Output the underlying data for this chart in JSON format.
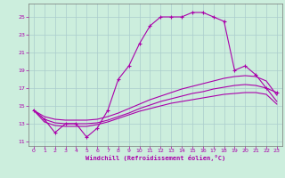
{
  "xlabel": "Windchill (Refroidissement éolien,°C)",
  "bg_color": "#cceedd",
  "line_color": "#aa00aa",
  "grid_color": "#aacccc",
  "ylim": [
    10.5,
    26.5
  ],
  "xlim": [
    -0.5,
    23.5
  ],
  "yticks": [
    11,
    13,
    15,
    17,
    19,
    21,
    23,
    25
  ],
  "xticks": [
    0,
    1,
    2,
    3,
    4,
    5,
    6,
    7,
    8,
    9,
    10,
    11,
    12,
    13,
    14,
    15,
    16,
    17,
    18,
    19,
    20,
    21,
    22,
    23
  ],
  "hours": [
    0,
    1,
    2,
    3,
    4,
    5,
    6,
    7,
    8,
    9,
    10,
    11,
    12,
    13,
    14,
    15,
    16,
    17,
    18,
    19,
    20,
    21,
    22,
    23
  ],
  "windchill": [
    14.5,
    13.5,
    12.0,
    13.0,
    13.0,
    11.5,
    12.5,
    14.5,
    18.0,
    19.5,
    22.0,
    24.0,
    25.0,
    25.0,
    25.0,
    25.5,
    25.5,
    25.0,
    24.5,
    19.0,
    19.5,
    18.5,
    17.0,
    16.5
  ],
  "smooth1": [
    14.5,
    13.2,
    12.8,
    12.7,
    12.7,
    12.7,
    12.9,
    13.2,
    13.6,
    14.0,
    14.4,
    14.7,
    15.0,
    15.3,
    15.5,
    15.7,
    15.9,
    16.1,
    16.3,
    16.4,
    16.5,
    16.5,
    16.3,
    15.2
  ],
  "smooth2": [
    14.5,
    13.5,
    13.1,
    13.0,
    13.0,
    13.0,
    13.1,
    13.4,
    13.8,
    14.2,
    14.7,
    15.1,
    15.5,
    15.8,
    16.1,
    16.4,
    16.6,
    16.9,
    17.1,
    17.3,
    17.4,
    17.3,
    17.0,
    15.5
  ],
  "smooth3": [
    14.5,
    13.8,
    13.5,
    13.4,
    13.4,
    13.4,
    13.5,
    13.8,
    14.2,
    14.7,
    15.2,
    15.7,
    16.1,
    16.5,
    16.9,
    17.2,
    17.5,
    17.8,
    18.1,
    18.3,
    18.4,
    18.3,
    17.8,
    16.2
  ]
}
